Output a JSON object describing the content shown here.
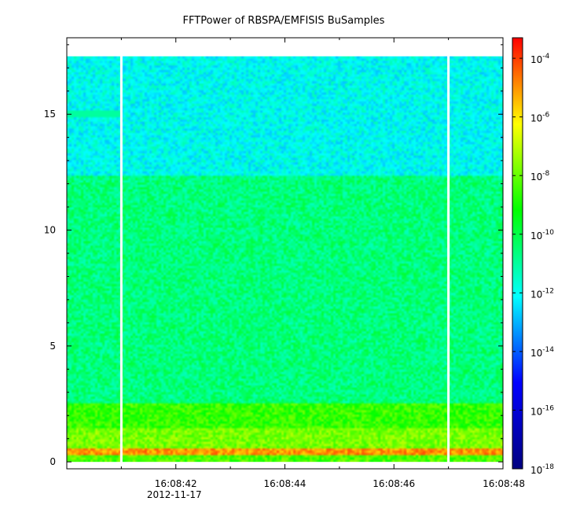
{
  "chart_data": {
    "type": "heatmap",
    "title": "FFTPower of RBSPA/EMFISIS  BuSamples",
    "xlabel": "",
    "ylabel": "",
    "x_range": [
      "16:08:40.0",
      "16:08:48.0"
    ],
    "ylim": [
      -0.3,
      18.3
    ],
    "x_ticks": [
      {
        "label": "16:08:42",
        "date": "2012-11-17",
        "t": 2
      },
      {
        "label": "16:08:44",
        "date": "",
        "t": 4
      },
      {
        "label": "16:08:46",
        "date": "",
        "t": 6
      },
      {
        "label": "16:08:48",
        "date": "",
        "t": 8
      }
    ],
    "x_minor_ticks": [
      1,
      3,
      5,
      7
    ],
    "y_ticks": [
      {
        "label": "0",
        "value": 0
      },
      {
        "label": "5",
        "value": 5
      },
      {
        "label": "10",
        "value": 10
      },
      {
        "label": "15",
        "value": 15
      }
    ],
    "data_extent": {
      "y_max": 17.5,
      "t_start": 0,
      "t_end": 8
    },
    "gaps_t": [
      1.0,
      7.0
    ],
    "spectral_bands": [
      {
        "y_from": 0.0,
        "y_to": 0.25,
        "log_power": -8.3
      },
      {
        "y_from": 0.25,
        "y_to": 0.55,
        "log_power": -5.0
      },
      {
        "y_from": 0.55,
        "y_to": 1.5,
        "log_power": -7.8
      },
      {
        "y_from": 1.5,
        "y_to": 2.5,
        "log_power": -8.6
      },
      {
        "y_from": 2.5,
        "y_to": 12.3,
        "log_power": -10.6
      },
      {
        "y_from": 12.3,
        "y_to": 17.5,
        "log_power": -12.0
      }
    ],
    "narrowband_line": {
      "y": 15.0,
      "t_from": 0,
      "t_to": 1,
      "log_power": -11.0
    },
    "colorbar": {
      "scale": "log",
      "range_exp": [
        -18,
        -3.3
      ],
      "ticks": [
        {
          "base": "10",
          "exp": "-4",
          "e": -4
        },
        {
          "base": "10",
          "exp": "-6",
          "e": -6
        },
        {
          "base": "10",
          "exp": "-8",
          "e": -8
        },
        {
          "base": "10",
          "exp": "-10",
          "e": -10
        },
        {
          "base": "10",
          "exp": "-12",
          "e": -12
        },
        {
          "base": "10",
          "exp": "-14",
          "e": -14
        },
        {
          "base": "10",
          "exp": "-16",
          "e": -16
        },
        {
          "base": "10",
          "exp": "-18",
          "e": -18
        }
      ],
      "colors": [
        "#000080",
        "#0000ff",
        "#00ffff",
        "#00ff00",
        "#ffff00",
        "#ff0000"
      ]
    }
  }
}
